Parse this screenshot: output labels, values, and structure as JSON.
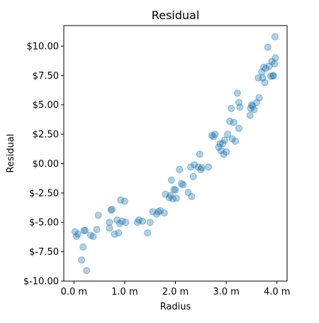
{
  "chart_data": {
    "type": "scatter",
    "title": "Residual",
    "xlabel": "Radius",
    "ylabel": "Residual",
    "xlim": [
      -0.2,
      4.2
    ],
    "ylim": [
      -10.0,
      11.75
    ],
    "x_ticks": [
      0,
      1,
      2,
      3,
      4
    ],
    "x_tick_labels": [
      "0.0 m",
      "1.0 m",
      "2.0 m",
      "3.0 m",
      "4.0 m"
    ],
    "y_ticks": [
      -10,
      -7.5,
      -5,
      -2.5,
      0,
      2.5,
      5,
      7.5,
      10
    ],
    "y_tick_labels": [
      "$-10.00",
      "$-7.50",
      "$-5.00",
      "$-2.50",
      "$0.00",
      "$2.50",
      "$5.00",
      "$7.50",
      "$10.00"
    ],
    "grid": false,
    "legend": "none",
    "point_color": "#1f77b4",
    "point_alpha": 0.35,
    "points": [
      [
        0.02,
        -5.8
      ],
      [
        0.05,
        -6.2
      ],
      [
        0.08,
        -6.0
      ],
      [
        0.15,
        -8.2
      ],
      [
        0.2,
        -5.7
      ],
      [
        0.18,
        -7.1
      ],
      [
        0.22,
        -5.7
      ],
      [
        0.25,
        -9.1
      ],
      [
        0.33,
        -6.1
      ],
      [
        0.38,
        -6.2
      ],
      [
        0.45,
        -5.6
      ],
      [
        0.48,
        -4.4
      ],
      [
        0.7,
        -5.0
      ],
      [
        0.7,
        -5.5
      ],
      [
        0.75,
        -3.9
      ],
      [
        0.73,
        -3.95
      ],
      [
        0.8,
        -6.0
      ],
      [
        0.85,
        -4.8
      ],
      [
        0.88,
        -5.9
      ],
      [
        0.9,
        -5.1
      ],
      [
        0.92,
        -3.1
      ],
      [
        0.95,
        -4.9
      ],
      [
        1.0,
        -3.2
      ],
      [
        1.02,
        -5.0
      ],
      [
        1.25,
        -5.0
      ],
      [
        1.28,
        -4.8
      ],
      [
        1.35,
        -4.9
      ],
      [
        1.45,
        -5.9
      ],
      [
        1.5,
        -5.0
      ],
      [
        1.55,
        -4.1
      ],
      [
        1.63,
        -4.3
      ],
      [
        1.66,
        -4.1
      ],
      [
        1.7,
        -4.0
      ],
      [
        1.78,
        -4.2
      ],
      [
        1.8,
        -2.6
      ],
      [
        1.88,
        -2.9
      ],
      [
        1.9,
        -2.7
      ],
      [
        1.92,
        -1.4
      ],
      [
        1.95,
        -3.0
      ],
      [
        1.97,
        -2.2
      ],
      [
        2.0,
        -2.25
      ],
      [
        2.02,
        -2.95
      ],
      [
        2.08,
        -0.5
      ],
      [
        2.12,
        -1.7
      ],
      [
        2.15,
        -1.8
      ],
      [
        2.25,
        -2.45
      ],
      [
        2.3,
        -0.3
      ],
      [
        2.32,
        -2.8
      ],
      [
        2.35,
        -1.1
      ],
      [
        2.37,
        -0.1
      ],
      [
        2.45,
        -0.3
      ],
      [
        2.48,
        0.8
      ],
      [
        2.5,
        -0.5
      ],
      [
        2.52,
        -0.35
      ],
      [
        2.65,
        -0.3
      ],
      [
        2.72,
        2.4
      ],
      [
        2.75,
        2.3
      ],
      [
        2.78,
        2.5
      ],
      [
        2.85,
        1.4
      ],
      [
        2.88,
        1.7
      ],
      [
        2.9,
        1.1
      ],
      [
        2.93,
        1.7
      ],
      [
        2.95,
        0.8
      ],
      [
        2.97,
        2.0
      ],
      [
        3.0,
        1.0
      ],
      [
        3.03,
        2.5
      ],
      [
        3.07,
        3.6
      ],
      [
        3.1,
        4.7
      ],
      [
        3.12,
        2.1
      ],
      [
        3.15,
        3.5
      ],
      [
        3.18,
        1.9
      ],
      [
        3.22,
        6.0
      ],
      [
        3.25,
        5.2
      ],
      [
        3.27,
        4.8
      ],
      [
        3.25,
        3.0
      ],
      [
        3.47,
        4.1
      ],
      [
        3.48,
        4.7
      ],
      [
        3.5,
        5.0
      ],
      [
        3.52,
        4.9
      ],
      [
        3.55,
        4.6
      ],
      [
        3.6,
        5.2
      ],
      [
        3.63,
        7.3
      ],
      [
        3.65,
        5.6
      ],
      [
        3.7,
        7.8
      ],
      [
        3.72,
        7.3
      ],
      [
        3.74,
        8.2
      ],
      [
        3.76,
        6.9
      ],
      [
        3.78,
        8.1
      ],
      [
        3.82,
        9.9
      ],
      [
        3.85,
        8.3
      ],
      [
        3.88,
        7.45
      ],
      [
        3.9,
        8.7
      ],
      [
        3.92,
        7.45
      ],
      [
        3.95,
        8.5
      ],
      [
        3.96,
        10.8
      ],
      [
        3.97,
        9.0
      ],
      [
        3.93,
        7.5
      ]
    ]
  }
}
